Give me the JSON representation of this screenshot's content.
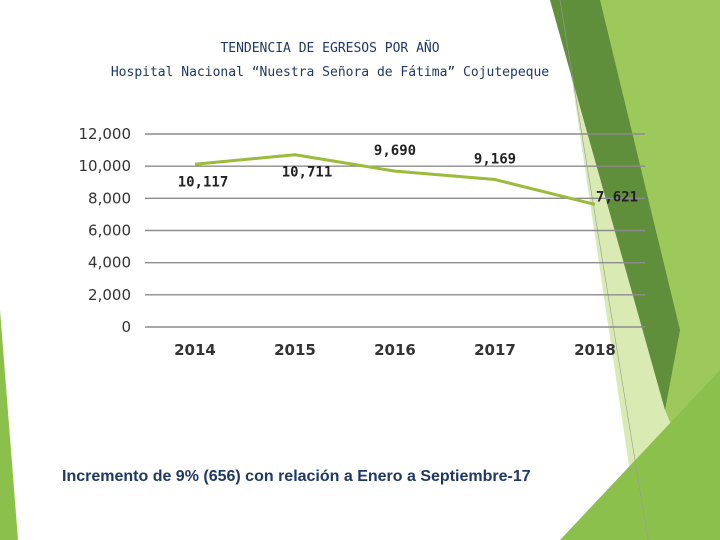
{
  "chart_data": {
    "type": "line",
    "title": "TENDENCIA DE EGRESOS POR AÑO",
    "subtitle": "Hospital Nacional “Nuestra Señora de Fátima” Cojutepeque",
    "categories": [
      "2014",
      "2015",
      "2016",
      "2017",
      "2018"
    ],
    "values": [
      10117,
      10711,
      9690,
      9169,
      7621
    ],
    "data_labels": [
      "10,117",
      "10,711",
      "9,690",
      "9,169",
      "7,621"
    ],
    "y_ticks": [
      0,
      2000,
      4000,
      6000,
      8000,
      10000,
      12000
    ],
    "y_tick_labels": [
      "0",
      "2,000",
      "4,000",
      "6,000",
      "8,000",
      "10,000",
      "12,000"
    ],
    "ylim": [
      0,
      12000
    ],
    "grid": true,
    "legend": "none",
    "line_color": "#9bbb3a"
  },
  "footnote": "Incremento de 9%  (656) con relación a Enero a Septiembre-17",
  "colors": {
    "accent_dark": "#4e8a2a",
    "accent_mid": "#7ab648",
    "accent_light": "#c5e08e",
    "title": "#1f3864"
  }
}
